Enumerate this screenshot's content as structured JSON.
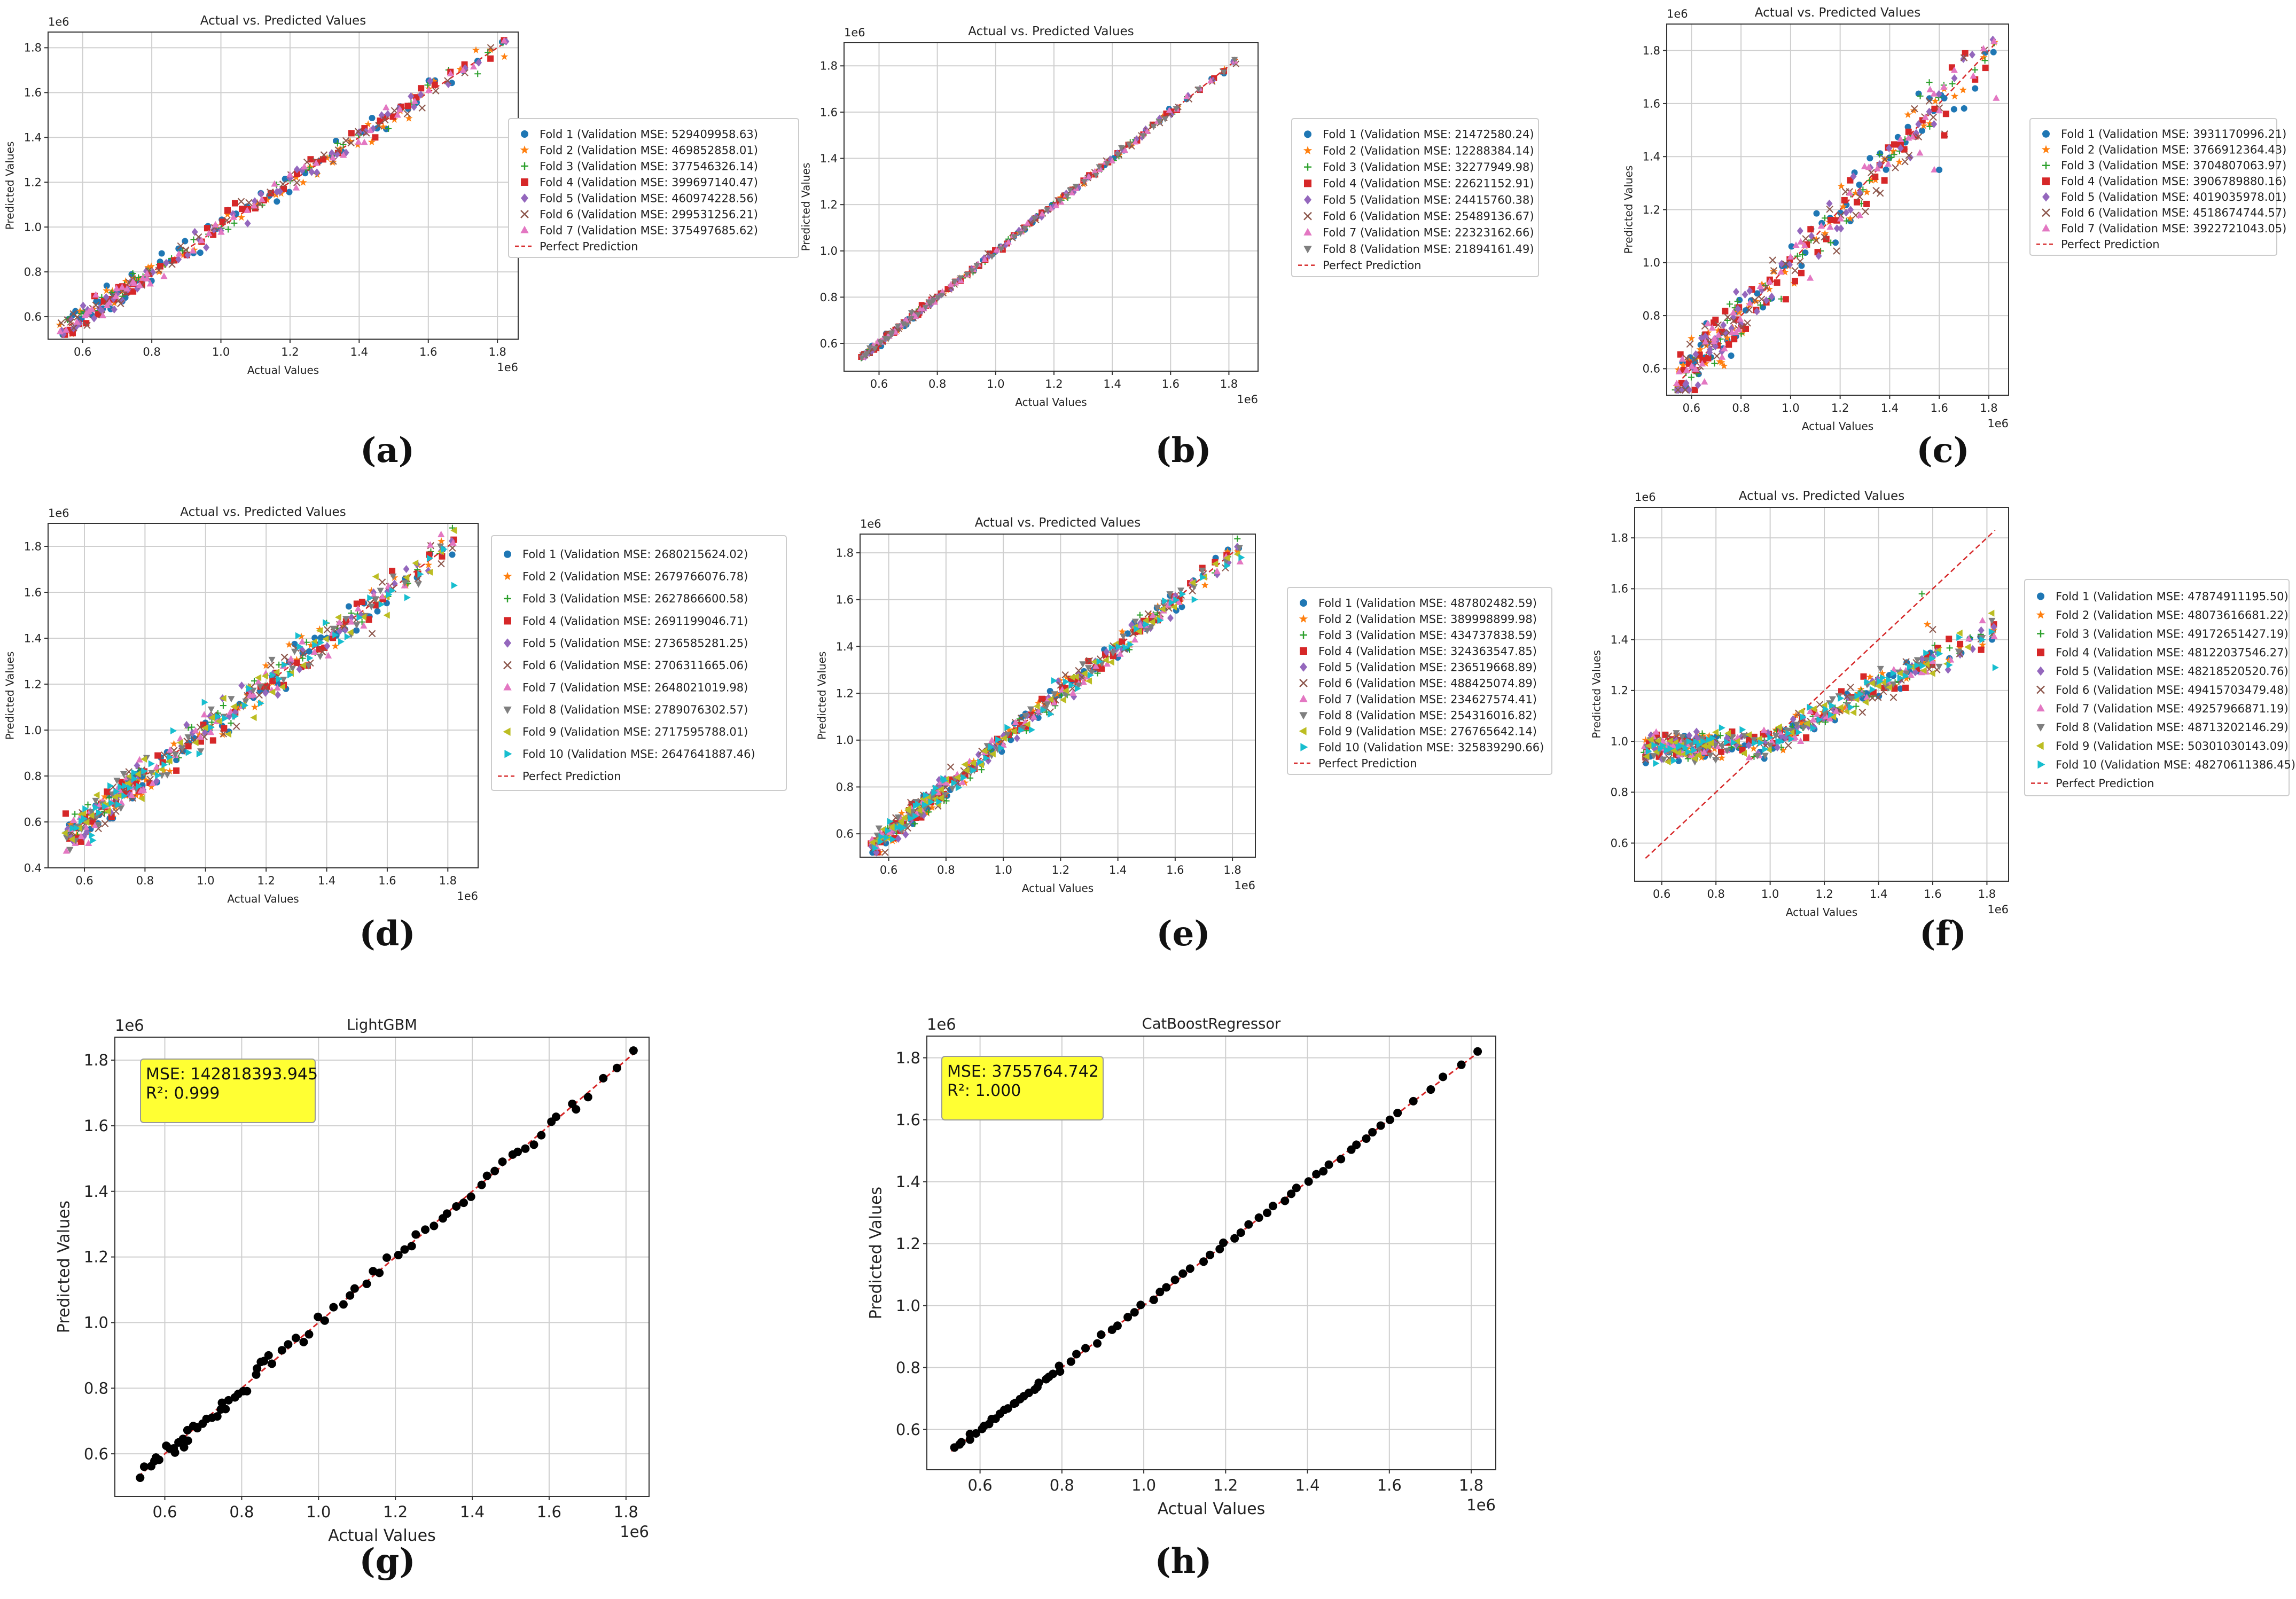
{
  "chart_data": [
    {
      "type": "scatter",
      "panel": "(a)",
      "title": "Actual vs. Predicted Values",
      "xlabel": "Actual Values",
      "ylabel": "Predicted Values",
      "x_multiplier": "1e6",
      "y_multiplier": "1e6",
      "xlim": [
        0.5,
        1.86
      ],
      "ylim": [
        0.5,
        1.87
      ],
      "xticks": [
        "0.6",
        "0.8",
        "1.0",
        "1.2",
        "1.4",
        "1.6",
        "1.8"
      ],
      "yticks": [
        "0.6",
        "0.8",
        "1.0",
        "1.2",
        "1.4",
        "1.6",
        "1.8"
      ],
      "legend_position": "right",
      "noise": 0.025,
      "outliers": [
        [
          1.82,
          1.76
        ]
      ],
      "series": [
        {
          "name": "Fold 1 (Validation MSE: 529409958.63)",
          "marker": "circle",
          "color": "#1f77b4"
        },
        {
          "name": "Fold 2 (Validation MSE: 469852858.01)",
          "marker": "star",
          "color": "#ff7f0e"
        },
        {
          "name": "Fold 3 (Validation MSE: 377546326.14)",
          "marker": "plus",
          "color": "#2ca02c"
        },
        {
          "name": "Fold 4 (Validation MSE: 399697140.47)",
          "marker": "square",
          "color": "#d62728"
        },
        {
          "name": "Fold 5 (Validation MSE: 460974228.56)",
          "marker": "diamond",
          "color": "#9467bd"
        },
        {
          "name": "Fold 6 (Validation MSE: 299531256.21)",
          "marker": "x",
          "color": "#8c564b"
        },
        {
          "name": "Fold 7 (Validation MSE: 375497685.62)",
          "marker": "triangle-up",
          "color": "#e377c2"
        }
      ],
      "reference_line": {
        "name": "Perfect Prediction",
        "from": [
          0.54,
          0.54
        ],
        "to": [
          1.83,
          1.83
        ],
        "color": "#d62728",
        "style": "dashed"
      }
    },
    {
      "type": "scatter",
      "panel": "(b)",
      "title": "Actual vs. Predicted Values",
      "xlabel": "Actual Values",
      "ylabel": "Predicted Values",
      "x_multiplier": "1e6",
      "y_multiplier": "1e6",
      "xlim": [
        0.48,
        1.9
      ],
      "ylim": [
        0.48,
        1.9
      ],
      "xticks": [
        "0.6",
        "0.8",
        "1.0",
        "1.2",
        "1.4",
        "1.6",
        "1.8"
      ],
      "yticks": [
        "0.6",
        "0.8",
        "1.0",
        "1.2",
        "1.4",
        "1.6",
        "1.8"
      ],
      "legend_position": "right",
      "noise": 0.006,
      "outliers": [],
      "series": [
        {
          "name": "Fold 1 (Validation MSE: 21472580.24)",
          "marker": "circle",
          "color": "#1f77b4"
        },
        {
          "name": "Fold 2 (Validation MSE: 12288384.14)",
          "marker": "star",
          "color": "#ff7f0e"
        },
        {
          "name": "Fold 3 (Validation MSE: 32277949.98)",
          "marker": "plus",
          "color": "#2ca02c"
        },
        {
          "name": "Fold 4 (Validation MSE: 22621152.91)",
          "marker": "square",
          "color": "#d62728"
        },
        {
          "name": "Fold 5 (Validation MSE: 24415760.38)",
          "marker": "diamond",
          "color": "#9467bd"
        },
        {
          "name": "Fold 6 (Validation MSE: 25489136.67)",
          "marker": "x",
          "color": "#8c564b"
        },
        {
          "name": "Fold 7 (Validation MSE: 22323162.66)",
          "marker": "triangle-up",
          "color": "#e377c2"
        },
        {
          "name": "Fold 8 (Validation MSE: 21894161.49)",
          "marker": "triangle-down",
          "color": "#7f7f7f"
        }
      ],
      "reference_line": {
        "name": "Perfect Prediction",
        "from": [
          0.54,
          0.54
        ],
        "to": [
          1.83,
          1.83
        ],
        "color": "#d62728",
        "style": "dashed"
      }
    },
    {
      "type": "scatter",
      "panel": "(c)",
      "title": "Actual vs. Predicted Values",
      "xlabel": "Actual Values",
      "ylabel": "Predicted Values",
      "x_multiplier": "1e6",
      "y_multiplier": "1e6",
      "xlim": [
        0.5,
        1.88
      ],
      "ylim": [
        0.5,
        1.9
      ],
      "xticks": [
        "0.6",
        "0.8",
        "1.0",
        "1.2",
        "1.4",
        "1.6",
        "1.8"
      ],
      "yticks": [
        "0.6",
        "0.8",
        "1.0",
        "1.2",
        "1.4",
        "1.6",
        "1.8"
      ],
      "legend_position": "right",
      "noise": 0.05,
      "outliers": [
        [
          1.56,
          1.68
        ],
        [
          1.58,
          1.35
        ],
        [
          1.6,
          1.35
        ],
        [
          1.62,
          1.48
        ],
        [
          1.83,
          1.62
        ]
      ],
      "series": [
        {
          "name": "Fold 1 (Validation MSE: 3931170996.21)",
          "marker": "circle",
          "color": "#1f77b4"
        },
        {
          "name": "Fold 2 (Validation MSE: 3766912364.43)",
          "marker": "star",
          "color": "#ff7f0e"
        },
        {
          "name": "Fold 3 (Validation MSE: 3704807063.97)",
          "marker": "plus",
          "color": "#2ca02c"
        },
        {
          "name": "Fold 4 (Validation MSE: 3906789880.16)",
          "marker": "square",
          "color": "#d62728"
        },
        {
          "name": "Fold 5 (Validation MSE: 4019035978.01)",
          "marker": "diamond",
          "color": "#9467bd"
        },
        {
          "name": "Fold 6 (Validation MSE: 4518674744.57)",
          "marker": "x",
          "color": "#8c564b"
        },
        {
          "name": "Fold 7 (Validation MSE: 3922721043.05)",
          "marker": "triangle-up",
          "color": "#e377c2"
        }
      ],
      "reference_line": {
        "name": "Perfect Prediction",
        "from": [
          0.54,
          0.54
        ],
        "to": [
          1.83,
          1.83
        ],
        "color": "#d62728",
        "style": "dashed"
      }
    },
    {
      "type": "scatter",
      "panel": "(d)",
      "title": "Actual vs. Predicted Values",
      "xlabel": "Actual Values",
      "ylabel": "Predicted Values",
      "x_multiplier": "1e6",
      "y_multiplier": "1e6",
      "xlim": [
        0.48,
        1.9
      ],
      "ylim": [
        0.4,
        1.9
      ],
      "xticks": [
        "0.6",
        "0.8",
        "1.0",
        "1.2",
        "1.4",
        "1.6",
        "1.8"
      ],
      "yticks": [
        "0.4",
        "0.6",
        "0.8",
        "1.0",
        "1.2",
        "1.4",
        "1.6",
        "1.8"
      ],
      "legend_position": "right",
      "noise": 0.04,
      "outliers": [
        [
          1.82,
          1.63
        ],
        [
          1.55,
          1.42
        ],
        [
          1.6,
          1.5
        ]
      ],
      "series": [
        {
          "name": "Fold 1 (Validation MSE: 2680215624.02)",
          "marker": "circle",
          "color": "#1f77b4"
        },
        {
          "name": "Fold 2 (Validation MSE: 2679766076.78)",
          "marker": "star",
          "color": "#ff7f0e"
        },
        {
          "name": "Fold 3 (Validation MSE: 2627866600.58)",
          "marker": "plus",
          "color": "#2ca02c"
        },
        {
          "name": "Fold 4 (Validation MSE: 2691199046.71)",
          "marker": "square",
          "color": "#d62728"
        },
        {
          "name": "Fold 5 (Validation MSE: 2736585281.25)",
          "marker": "diamond",
          "color": "#9467bd"
        },
        {
          "name": "Fold 6 (Validation MSE: 2706311665.06)",
          "marker": "x",
          "color": "#8c564b"
        },
        {
          "name": "Fold 7 (Validation MSE: 2648021019.98)",
          "marker": "triangle-up",
          "color": "#e377c2"
        },
        {
          "name": "Fold 8 (Validation MSE: 2789076302.57)",
          "marker": "triangle-down",
          "color": "#7f7f7f"
        },
        {
          "name": "Fold 9 (Validation MSE: 2717595788.01)",
          "marker": "triangle-left",
          "color": "#bcbd22"
        },
        {
          "name": "Fold 10 (Validation MSE: 2647641887.46)",
          "marker": "triangle-right",
          "color": "#17becf"
        }
      ],
      "reference_line": {
        "name": "Perfect Prediction",
        "from": [
          0.54,
          0.54
        ],
        "to": [
          1.83,
          1.83
        ],
        "color": "#d62728",
        "style": "dashed"
      }
    },
    {
      "type": "scatter",
      "panel": "(e)",
      "title": "Actual vs. Predicted Values",
      "xlabel": "Actual Values",
      "ylabel": "Predicted Values",
      "x_multiplier": "1e6",
      "y_multiplier": "1e6",
      "xlim": [
        0.5,
        1.88
      ],
      "ylim": [
        0.5,
        1.88
      ],
      "xticks": [
        "0.6",
        "0.8",
        "1.0",
        "1.2",
        "1.4",
        "1.6",
        "1.8"
      ],
      "yticks": [
        "0.6",
        "0.8",
        "1.0",
        "1.2",
        "1.4",
        "1.6",
        "1.8"
      ],
      "legend_position": "right",
      "noise": 0.025,
      "outliers": [
        [
          1.83,
          1.78
        ]
      ],
      "series": [
        {
          "name": "Fold 1 (Validation MSE: 487802482.59)",
          "marker": "circle",
          "color": "#1f77b4"
        },
        {
          "name": "Fold 2 (Validation MSE: 389998899.98)",
          "marker": "star",
          "color": "#ff7f0e"
        },
        {
          "name": "Fold 3 (Validation MSE: 434737838.59)",
          "marker": "plus",
          "color": "#2ca02c"
        },
        {
          "name": "Fold 4 (Validation MSE: 324363547.85)",
          "marker": "square",
          "color": "#d62728"
        },
        {
          "name": "Fold 5 (Validation MSE: 236519668.89)",
          "marker": "diamond",
          "color": "#9467bd"
        },
        {
          "name": "Fold 6 (Validation MSE: 488425074.89)",
          "marker": "x",
          "color": "#8c564b"
        },
        {
          "name": "Fold 7 (Validation MSE: 234627574.41)",
          "marker": "triangle-up",
          "color": "#e377c2"
        },
        {
          "name": "Fold 8 (Validation MSE: 254316016.82)",
          "marker": "triangle-down",
          "color": "#7f7f7f"
        },
        {
          "name": "Fold 9 (Validation MSE: 276765642.14)",
          "marker": "triangle-left",
          "color": "#bcbd22"
        },
        {
          "name": "Fold 10 (Validation MSE: 325839290.66)",
          "marker": "triangle-right",
          "color": "#17becf"
        }
      ],
      "reference_line": {
        "name": "Perfect Prediction",
        "from": [
          0.54,
          0.54
        ],
        "to": [
          1.83,
          1.83
        ],
        "color": "#d62728",
        "style": "dashed"
      }
    },
    {
      "type": "scatter",
      "panel": "(f)",
      "title": "Actual vs. Predicted Values",
      "xlabel": "Actual Values",
      "ylabel": "Predicted Values",
      "x_multiplier": "1e6",
      "y_multiplier": "1e6",
      "xlim": [
        0.5,
        1.88
      ],
      "ylim": [
        0.45,
        1.92
      ],
      "xticks": [
        "0.6",
        "0.8",
        "1.0",
        "1.2",
        "1.4",
        "1.6",
        "1.8"
      ],
      "yticks": [
        "0.6",
        "0.8",
        "1.0",
        "1.2",
        "1.4",
        "1.6",
        "1.8"
      ],
      "legend_position": "right",
      "pattern": "flattened",
      "noise": 0.03,
      "outliers": [
        [
          1.56,
          1.58
        ],
        [
          1.58,
          1.46
        ],
        [
          1.6,
          1.44
        ],
        [
          1.83,
          1.29
        ]
      ],
      "series": [
        {
          "name": "Fold 1 (Validation MSE: 47874911195.50)",
          "marker": "circle",
          "color": "#1f77b4"
        },
        {
          "name": "Fold 2 (Validation MSE: 48073616681.22)",
          "marker": "star",
          "color": "#ff7f0e"
        },
        {
          "name": "Fold 3 (Validation MSE: 49172651427.19)",
          "marker": "plus",
          "color": "#2ca02c"
        },
        {
          "name": "Fold 4 (Validation MSE: 48122037546.27)",
          "marker": "square",
          "color": "#d62728"
        },
        {
          "name": "Fold 5 (Validation MSE: 48218520520.76)",
          "marker": "diamond",
          "color": "#9467bd"
        },
        {
          "name": "Fold 6 (Validation MSE: 49415703479.48)",
          "marker": "x",
          "color": "#8c564b"
        },
        {
          "name": "Fold 7 (Validation MSE: 49257966871.19)",
          "marker": "triangle-up",
          "color": "#e377c2"
        },
        {
          "name": "Fold 8 (Validation MSE: 48713202146.29)",
          "marker": "triangle-down",
          "color": "#7f7f7f"
        },
        {
          "name": "Fold 9 (Validation MSE: 50301030143.09)",
          "marker": "triangle-left",
          "color": "#bcbd22"
        },
        {
          "name": "Fold 10 (Validation MSE: 48270611386.45)",
          "marker": "triangle-right",
          "color": "#17becf"
        }
      ],
      "reference_line": {
        "name": "Perfect Prediction",
        "from": [
          0.54,
          0.54
        ],
        "to": [
          1.83,
          1.83
        ],
        "color": "#d62728",
        "style": "dashed"
      }
    },
    {
      "type": "scatter",
      "panel": "(g)",
      "title": "LightGBM",
      "xlabel": "Actual Values",
      "ylabel": "Predicted Values",
      "x_multiplier": "1e6",
      "y_multiplier": "1e6",
      "xlim": [
        0.47,
        1.86
      ],
      "ylim": [
        0.47,
        1.87
      ],
      "xticks": [
        "0.6",
        "0.8",
        "1.0",
        "1.2",
        "1.4",
        "1.6",
        "1.8"
      ],
      "yticks": [
        "0.6",
        "0.8",
        "1.0",
        "1.2",
        "1.4",
        "1.6",
        "1.8"
      ],
      "annotation": [
        "MSE: 142818393.945",
        "R²: 0.999"
      ],
      "annotation_bg": "#ffff33",
      "noise": 0.012,
      "outliers": [
        [
          0.65,
          0.62
        ],
        [
          0.66,
          0.64
        ],
        [
          0.84,
          0.86
        ],
        [
          0.85,
          0.88
        ],
        [
          0.87,
          0.9
        ],
        [
          1.67,
          1.65
        ]
      ],
      "series": [
        {
          "name": "Predictions",
          "marker": "circle",
          "color": "#000000"
        }
      ],
      "reference_line": {
        "name": "",
        "from": [
          0.53,
          0.53
        ],
        "to": [
          1.82,
          1.82
        ],
        "color": "#d62728",
        "style": "dashed"
      }
    },
    {
      "type": "scatter",
      "panel": "(h)",
      "title": "CatBoostRegressor",
      "xlabel": "Actual Values",
      "ylabel": "Predicted Values",
      "x_multiplier": "1e6",
      "y_multiplier": "1e6",
      "xlim": [
        0.47,
        1.86
      ],
      "ylim": [
        0.47,
        1.87
      ],
      "xticks": [
        "0.6",
        "0.8",
        "1.0",
        "1.2",
        "1.4",
        "1.6",
        "1.8"
      ],
      "yticks": [
        "0.6",
        "0.8",
        "1.0",
        "1.2",
        "1.4",
        "1.6",
        "1.8"
      ],
      "annotation": [
        "MSE: 3755764.742",
        "R²: 1.000"
      ],
      "annotation_bg": "#ffff33",
      "noise": 0.003,
      "outliers": [],
      "series": [
        {
          "name": "Predictions",
          "marker": "circle",
          "color": "#000000"
        }
      ],
      "reference_line": {
        "name": "",
        "from": [
          0.53,
          0.53
        ],
        "to": [
          1.82,
          1.82
        ],
        "color": "#d62728",
        "style": "dashed"
      }
    }
  ],
  "actual_values": [
    0.54,
    0.55,
    0.56,
    0.57,
    0.58,
    0.59,
    0.6,
    0.61,
    0.62,
    0.63,
    0.64,
    0.65,
    0.66,
    0.67,
    0.68,
    0.69,
    0.7,
    0.71,
    0.72,
    0.73,
    0.74,
    0.75,
    0.76,
    0.77,
    0.78,
    0.79,
    0.8,
    0.82,
    0.84,
    0.86,
    0.88,
    0.9,
    0.92,
    0.94,
    0.96,
    0.98,
    1.0,
    1.02,
    1.04,
    1.06,
    1.08,
    1.1,
    1.12,
    1.14,
    1.16,
    1.18,
    1.2,
    1.22,
    1.24,
    1.26,
    1.28,
    1.3,
    1.32,
    1.34,
    1.36,
    1.38,
    1.4,
    1.42,
    1.44,
    1.46,
    1.48,
    1.5,
    1.52,
    1.54,
    1.56,
    1.58,
    1.6,
    1.62,
    1.66,
    1.7,
    1.74,
    1.78,
    1.82
  ]
}
